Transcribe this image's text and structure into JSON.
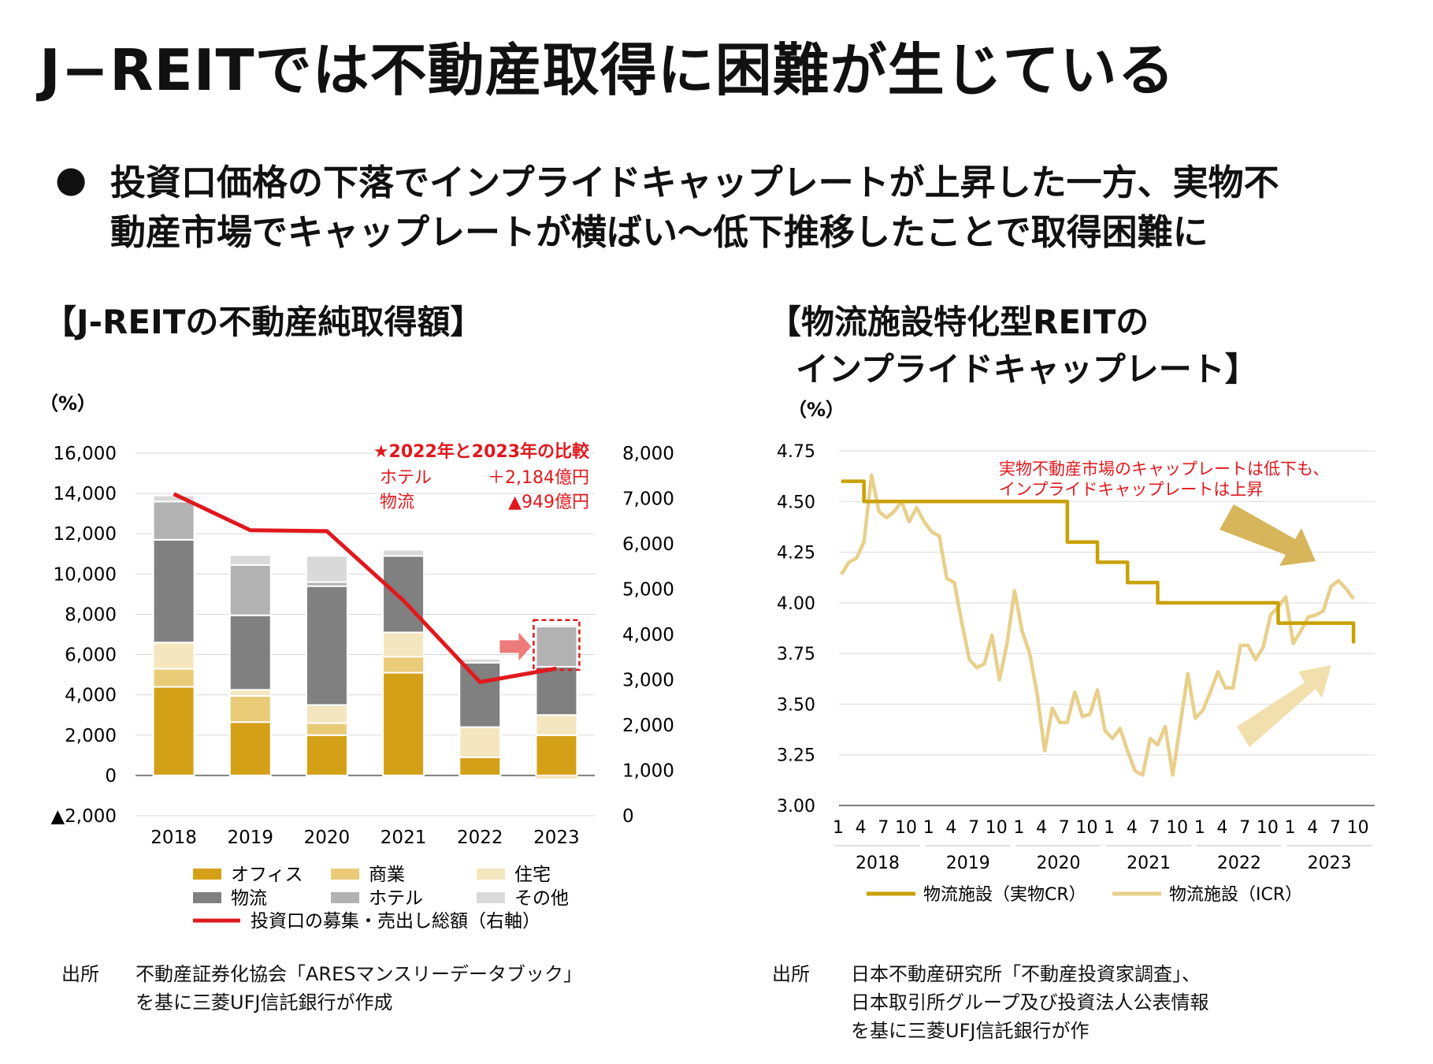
{
  "page": {
    "title": "J−REITでは不動産取得に困難が生じている",
    "bullet_icon": "●",
    "bullet_line1": "投資口価格の下落でインプライドキャップレートが上昇した一方、実物不",
    "bullet_line2": "動産市場でキャップレートが横ばい～低下推移したことで取得困難に",
    "left_section_title": "【J-REITの不動産純取得額】",
    "right_section_title_line1": "【物流施設特化型REITの",
    "right_section_title_line2": "インプライドキャップレート】",
    "left_source_label": "出所",
    "left_source_line1": "不動産証券化協会「ARESマンスリーデータブック」",
    "left_source_line2": "を基に三菱UFJ信託銀行が作成",
    "right_source_label": "出所",
    "right_source_line1": "日本不動産研究所「不動産投資家調査」、",
    "right_source_line2": "日本取引所グループ及び投資法人公表情報",
    "right_source_line3": "を基に三菱UFJ信託銀行が作"
  },
  "chart_data": [
    {
      "type": "bar",
      "stacked": true,
      "unit_label": "（%）",
      "categories": [
        "2018",
        "2019",
        "2020",
        "2021",
        "2022",
        "2023"
      ],
      "ylim": [
        -2000,
        16000
      ],
      "yticks": [
        -2000,
        0,
        2000,
        4000,
        6000,
        8000,
        10000,
        12000,
        14000,
        16000
      ],
      "ytick_labels": [
        "▲2,000",
        "0",
        "2,000",
        "4,000",
        "6,000",
        "8,000",
        "10,000",
        "12,000",
        "14,000",
        "16,000"
      ],
      "y2lim": [
        0,
        8000
      ],
      "y2ticks": [
        0,
        1000,
        2000,
        3000,
        4000,
        5000,
        6000,
        7000,
        8000
      ],
      "y2tick_labels": [
        "0",
        "1,000",
        "2,000",
        "3,000",
        "4,000",
        "5,000",
        "6,000",
        "7,000",
        "8,000"
      ],
      "series": [
        {
          "name": "オフィス",
          "color": "#D4A017",
          "values": [
            4400,
            2650,
            2000,
            5100,
            900,
            2000
          ]
        },
        {
          "name": "商業",
          "color": "#E9CB78",
          "values": [
            900,
            1300,
            600,
            800,
            0,
            0
          ]
        },
        {
          "name": "住宅",
          "color": "#F4E6BF",
          "values": [
            1300,
            300,
            900,
            1200,
            1500,
            1000
          ]
        },
        {
          "name": "物流",
          "color": "#808080",
          "values": [
            5100,
            3700,
            5900,
            3800,
            3200,
            2400
          ]
        },
        {
          "name": "ホテル",
          "color": "#B2B2B2",
          "values": [
            1900,
            2500,
            200,
            0,
            0,
            2000
          ]
        },
        {
          "name": "その他",
          "color": "#D9D9D9",
          "values": [
            300,
            500,
            1300,
            300,
            200,
            100
          ]
        }
      ],
      "negative_segments": [
        0,
        0,
        0,
        0,
        0,
        -150
      ],
      "line_series": {
        "name": "投資口の募集・売出し総額（右軸）",
        "color": "#E0191E",
        "axis": "right",
        "values": [
          7100,
          6300,
          6280,
          4750,
          2950,
          3250
        ]
      },
      "annotation_title": "★2022年と2023年の比較",
      "annotation_rows": [
        {
          "label": "ホテル",
          "value": "＋2,184億円"
        },
        {
          "label": "物流",
          "value": "▲949億円"
        }
      ],
      "annotation_color": "#E0191E"
    },
    {
      "type": "line",
      "unit_label": "（%）",
      "ylim": [
        3.0,
        4.75
      ],
      "yticks": [
        3.0,
        3.25,
        3.5,
        3.75,
        4.0,
        4.25,
        4.5,
        4.75
      ],
      "ytick_labels": [
        "3.00",
        "3.25",
        "3.50",
        "3.75",
        "4.00",
        "4.25",
        "4.50",
        "4.75"
      ],
      "month_ticks": [
        "1",
        "4",
        "7",
        "10"
      ],
      "years": [
        "2018",
        "2019",
        "2020",
        "2021",
        "2022",
        "2023"
      ],
      "annotation_line1": "実物不動産市場のキャップレートは低下も、",
      "annotation_line2": "インプライドキャップレートは上昇",
      "annotation_color": "#E0191E",
      "series": [
        {
          "name": "物流施設（実物CR）",
          "color": "#C9A100",
          "x": [
            0,
            3,
            3,
            30,
            30,
            34,
            34,
            38,
            38,
            42,
            42,
            46,
            46,
            54,
            54,
            58,
            58,
            60,
            60,
            62,
            62,
            68,
            68
          ],
          "y": [
            4.6,
            4.6,
            4.5,
            4.5,
            4.3,
            4.3,
            4.2,
            4.2,
            4.1,
            4.1,
            4.0,
            4.0,
            4.0,
            4.0,
            4.0,
            4.0,
            3.9,
            3.9,
            3.9,
            3.9,
            3.9,
            3.9,
            3.8
          ]
        },
        {
          "name": "物流施設（ICR）",
          "color": "#E8CF8A",
          "x": [
            0,
            1,
            2,
            3,
            4,
            5,
            6,
            7,
            8,
            9,
            10,
            11,
            12,
            13,
            14,
            15,
            16,
            17,
            18,
            19,
            20,
            21,
            22,
            23,
            24,
            25,
            26,
            27,
            28,
            29,
            30,
            31,
            32,
            33,
            34,
            35,
            36,
            37,
            38,
            39,
            40,
            41,
            42,
            43,
            44,
            45,
            46,
            47,
            48,
            49,
            50,
            51,
            52,
            53,
            54,
            55,
            56,
            57,
            58,
            59,
            60,
            61,
            62,
            63,
            64,
            65,
            66,
            67,
            68
          ],
          "y": [
            4.14,
            4.2,
            4.22,
            4.3,
            4.63,
            4.45,
            4.42,
            4.45,
            4.5,
            4.4,
            4.47,
            4.4,
            4.35,
            4.33,
            4.12,
            4.1,
            3.9,
            3.72,
            3.68,
            3.7,
            3.84,
            3.62,
            3.8,
            4.06,
            3.86,
            3.75,
            3.55,
            3.27,
            3.48,
            3.41,
            3.41,
            3.56,
            3.44,
            3.45,
            3.57,
            3.37,
            3.33,
            3.38,
            3.27,
            3.17,
            3.15,
            3.33,
            3.3,
            3.39,
            3.15,
            3.4,
            3.65,
            3.43,
            3.47,
            3.56,
            3.66,
            3.58,
            3.58,
            3.79,
            3.79,
            3.72,
            3.78,
            3.94,
            3.98,
            4.03,
            3.8,
            3.86,
            3.93,
            3.94,
            3.96,
            4.08,
            4.11,
            4.07,
            4.02
          ]
        }
      ]
    }
  ]
}
